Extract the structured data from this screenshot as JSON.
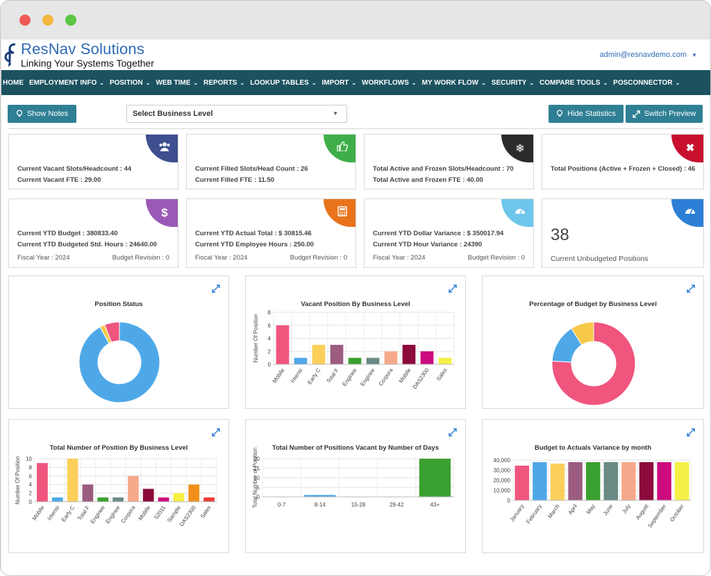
{
  "brand": {
    "name": "ResNav Solutions",
    "tagline": "Linking Your Systems Together"
  },
  "user": {
    "email": "admin@resnavdemo.com"
  },
  "nav": [
    {
      "label": "HOME",
      "caret": false
    },
    {
      "label": "EMPLOYMENT INFO",
      "caret": true
    },
    {
      "label": "POSITION",
      "caret": true
    },
    {
      "label": "WEB TIME",
      "caret": true
    },
    {
      "label": "REPORTS",
      "caret": true
    },
    {
      "label": "LOOKUP TABLES",
      "caret": true
    },
    {
      "label": "IMPORT",
      "caret": true
    },
    {
      "label": "WORKFLOWS",
      "caret": true
    },
    {
      "label": "MY WORK FLOW",
      "caret": true
    },
    {
      "label": "SECURITY",
      "caret": true
    },
    {
      "label": "COMPARE TOOLS",
      "caret": true
    },
    {
      "label": "POSCONNECTOR",
      "caret": true
    }
  ],
  "toolbar": {
    "show_notes": "Show Notes",
    "business_level": "Select Business Level",
    "hide_statistics": "Hide Statistics",
    "switch_preview": "Switch Preview"
  },
  "cards": {
    "vacant": {
      "line1": "Current Vacant Slots/Headcount : 44",
      "line2": "Current Vacant FTE : 29.00",
      "color": "#3d4f8f",
      "icon": "users-icon"
    },
    "filled": {
      "line1": "Current Filled Slots/Head Count : 26",
      "line2": "Current Filled FTE : 11.50",
      "color": "#3fae49",
      "icon": "thumbs-up-icon"
    },
    "active": {
      "line1": "Total Active and Frozen Slots/Headcount : 70",
      "line2": "Total Active and Frozen FTE : 40.00",
      "color": "#2b2b2b",
      "icon": "snowflake-icon"
    },
    "total": {
      "line1": "Total Positions (Active + Frozen + Closed) : 46",
      "color": "#c8102e",
      "icon": "close-icon"
    },
    "budget": {
      "line1": "Current YTD Budget : 380833.40",
      "line2": "Current YTD Budgeted Std. Hours : 24640.00",
      "fiscal": "Fiscal Year : 2024",
      "revision": "Budget Revision : 0",
      "color": "#9b59b6",
      "icon": "dollar-icon"
    },
    "actual": {
      "line1": "Current YTD Actual Total : $ 30815.46",
      "line2": "Current YTD Employee Hours : 250.00",
      "fiscal": "Fiscal Year : 2024",
      "revision": "Budget Revision : 0",
      "color": "#e8731c",
      "icon": "calculator-icon"
    },
    "variance": {
      "line1": "Current YTD Dollar Variance : $ 350017.94",
      "line2": "Current YTD Hour Variance : 24390",
      "fiscal": "Fiscal Year : 2024",
      "revision": "Budget Revision : 0",
      "color": "#6ec6ea",
      "icon": "dashboard-icon"
    },
    "unbudgeted": {
      "value": "38",
      "label": "Current Unbudgeted Positions",
      "color": "#2d7fd6",
      "icon": "dashboard-icon"
    }
  },
  "chart_data": [
    {
      "id": "position-status",
      "type": "pie",
      "title": "Position Status",
      "labels": [
        "",
        "",
        ""
      ],
      "values": [
        92,
        2,
        6
      ],
      "colors": [
        "#4ea8e8",
        "#f7c948",
        "#f0557e"
      ]
    },
    {
      "id": "vacant-by-level",
      "type": "bar",
      "title": "Vacant Position By Business Level",
      "ylabel": "Number Of Position",
      "categories": [
        "Mobile",
        "Intensi",
        "Early C",
        "Total F",
        "Enginee",
        "Enginee",
        "Corpora",
        "Mobile",
        "DAS2300",
        "Sales"
      ],
      "values": [
        6,
        1,
        3,
        3,
        1,
        1,
        2,
        3,
        2,
        1
      ],
      "colors": [
        "#f0557e",
        "#4ea8e8",
        "#fbcf5a",
        "#9b5c80",
        "#3aa02f",
        "#6a8a86",
        "#f6a98a",
        "#8c0a3c",
        "#cc0b7e",
        "#f4f045"
      ],
      "ylim": [
        0,
        8
      ],
      "yticks": [
        0,
        2,
        4,
        6,
        8
      ],
      "grid": true
    },
    {
      "id": "budget-percentage",
      "type": "pie",
      "title": "Percentage of Budget by Business Level",
      "labels": [
        "",
        "",
        ""
      ],
      "values": [
        76,
        15,
        9
      ],
      "colors": [
        "#f0557e",
        "#4ea8e8",
        "#f7c948"
      ]
    },
    {
      "id": "total-by-level",
      "type": "bar",
      "title": "Total Number of Position By Business Level",
      "ylabel": "Number Of Position",
      "categories": [
        "Mobile",
        "Intensi",
        "Early C",
        "Total F",
        "Enginee",
        "Enginee",
        "Corpora",
        "Mobile",
        "52011",
        "Sample",
        "DAS2300",
        "Sales"
      ],
      "values": [
        9,
        1,
        10,
        4,
        1,
        1,
        6,
        3,
        1,
        2,
        4,
        1
      ],
      "colors": [
        "#f0557e",
        "#4ea8e8",
        "#fbcf5a",
        "#9b5c80",
        "#3aa02f",
        "#6a8a86",
        "#f6a98a",
        "#8c0a3c",
        "#cc0b7e",
        "#f4f045",
        "#ef8f1a",
        "#ee3a37"
      ],
      "ylim": [
        0,
        10
      ],
      "yticks": [
        0,
        2,
        4,
        6,
        8,
        10
      ],
      "grid": true
    },
    {
      "id": "vacant-by-days",
      "type": "bar",
      "title": "Total Number of Positions Vacant by Number of Days",
      "ylabel": "Total Number of Position",
      "categories": [
        "0-7",
        "8-14",
        "15-28",
        "29-42",
        "43+"
      ],
      "values": [
        0,
        1,
        0,
        0,
        20
      ],
      "colors": [
        "#4ea8e8",
        "#4ea8e8",
        "#4ea8e8",
        "#4ea8e8",
        "#3aa02f"
      ],
      "ylim": [
        0,
        20
      ],
      "yticks": [
        0,
        5,
        10,
        15,
        20
      ],
      "grid": true
    },
    {
      "id": "budget-variance-month",
      "type": "bar",
      "title": "Budget to Actuals Variance by month",
      "ylabel": "",
      "categories": [
        "January",
        "February",
        "March",
        "April",
        "May",
        "June",
        "July",
        "August",
        "September",
        "October"
      ],
      "values": [
        34500,
        38000,
        36500,
        38000,
        38000,
        38000,
        38000,
        38000,
        38000,
        38000
      ],
      "colors": [
        "#f0557e",
        "#4ea8e8",
        "#fbcf5a",
        "#9b5c80",
        "#3aa02f",
        "#6a8a86",
        "#f6a98a",
        "#8c0a3c",
        "#cc0b7e",
        "#f4f045"
      ],
      "ylim": [
        0,
        40000
      ],
      "yticks": [
        0,
        10000,
        20000,
        30000,
        40000
      ],
      "ytick_labels": [
        "0",
        "10,000",
        "20,000",
        "30,000",
        "40,000"
      ],
      "grid": true
    }
  ]
}
